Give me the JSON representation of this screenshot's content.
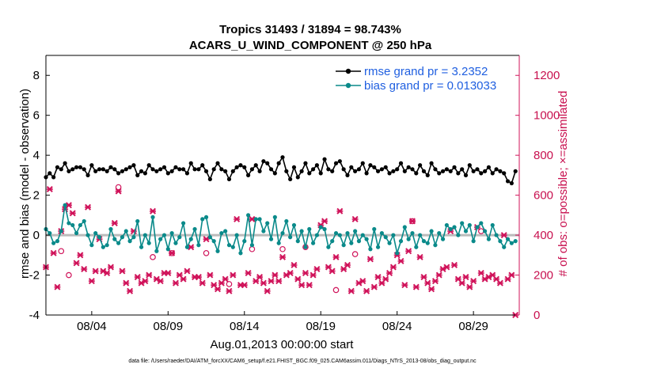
{
  "chart_data": {
    "type": "line",
    "title": "Tropics 31493 / 31894 = 98.743%",
    "subtitle": "ACARS_U_WIND_COMPONENT @ 250 hPa",
    "ylabel": "rmse and bias (model - observation)",
    "ylabel_right": "# of obs: o=possible; ×=assimilated",
    "xlabel": "Aug.01,2013 00:00:00 start",
    "footer": "data file: /Users/raeder/DAI/ATM_forcXX/CAM6_setup/f.e21.FHIST_BGC.f09_025.CAM6assim.011/Diags_NTrS_2013-08/obs_diag_output.nc",
    "ylim": [
      -4,
      9
    ],
    "ylim_right": [
      0,
      1300
    ],
    "yticks": [
      "-4",
      "-2",
      "0",
      "2",
      "4",
      "6",
      "8"
    ],
    "yticks_right": [
      "0",
      "200",
      "400",
      "600",
      "800",
      "1000",
      "1200"
    ],
    "xlim": [
      0,
      124
    ],
    "xtick_labels": [
      "08/04",
      "08/09",
      "08/14",
      "08/19",
      "08/24",
      "08/29"
    ],
    "grid": false,
    "legend_position": "top-right",
    "series": [
      {
        "name": "rmse grand pr = 3.2352",
        "color": "#000000",
        "values": [
          2.9,
          3.1,
          2.9,
          3.4,
          3.3,
          3.6,
          3.2,
          3.3,
          3.4,
          3.4,
          3.3,
          3.0,
          3.5,
          3.2,
          3.3,
          3.3,
          3.2,
          3.4,
          3.3,
          3.1,
          3.2,
          3.3,
          3.4,
          3.5,
          3.0,
          3.2,
          3.1,
          3.5,
          3.3,
          3.2,
          3.3,
          3.4,
          3.1,
          3.2,
          3.4,
          3.3,
          3.3,
          3.1,
          3.6,
          3.3,
          3.3,
          3.5,
          3.2,
          2.8,
          3.3,
          3.6,
          3.3,
          3.2,
          2.8,
          3.2,
          3.4,
          3.5,
          3.4,
          3.0,
          3.3,
          3.5,
          3.2,
          3.7,
          3.6,
          3.3,
          3.1,
          3.6,
          3.9,
          3.2,
          2.8,
          3.4,
          2.9,
          3.2,
          3.6,
          3.1,
          3.3,
          3.5,
          3.1,
          3.8,
          3.3,
          3.2,
          3.6,
          3.7,
          3.3,
          3.0,
          3.4,
          3.2,
          3.3,
          3.6,
          3.1,
          3.5,
          3.4,
          3.2,
          3.3,
          3.4,
          3.1,
          3.2,
          3.3,
          3.6,
          3.2,
          3.4,
          3.3,
          3.1,
          3.5,
          3.2,
          3.0,
          3.6,
          3.3,
          3.1,
          3.2,
          3.3,
          3.2,
          3.4,
          3.1,
          3.3,
          3.0,
          3.5,
          3.2,
          3.3,
          3.1,
          3.2,
          3.4,
          3.1,
          3.3,
          3.2,
          3.1,
          2.7,
          2.6,
          3.2
        ]
      },
      {
        "name": "bias grand pr = 0.013033",
        "color": "#0a8a8a",
        "values": [
          0.3,
          0.1,
          -0.4,
          -0.3,
          0.2,
          1.5,
          0.6,
          0.5,
          0.1,
          0.5,
          0.7,
          0.0,
          -0.5,
          0.1,
          -0.1,
          -0.6,
          -0.5,
          0.3,
          -0.2,
          -0.4,
          -0.1,
          0.2,
          -0.3,
          -0.1,
          0.7,
          -0.6,
          0.0,
          -0.4,
          0.9,
          -0.8,
          -0.2,
          0.0,
          -0.7,
          0.1,
          -0.4,
          -0.1,
          0.6,
          -0.6,
          -0.2,
          0.3,
          -0.5,
          0.8,
          0.9,
          -0.1,
          -0.3,
          -0.8,
          0.1,
          0.2,
          -0.5,
          -0.6,
          0.0,
          -0.9,
          -0.3,
          1.0,
          -0.5,
          0.8,
          0.8,
          0.2,
          0.6,
          -0.2,
          0.9,
          -0.4,
          0.1,
          0.7,
          -0.1,
          0.5,
          -0.3,
          0.2,
          -0.6,
          0.3,
          -0.4,
          0.0,
          0.4,
          0.3,
          -0.6,
          -0.3,
          0.1,
          0.0,
          -0.5,
          0.1,
          -0.4,
          0.2,
          -0.3,
          0.0,
          -0.2,
          -0.7,
          0.3,
          -0.6,
          0.1,
          -0.1,
          -0.4,
          0.0,
          -0.9,
          -0.3,
          0.4,
          -0.2,
          0.1,
          -0.6,
          0.0,
          -0.3,
          -0.4,
          0.2,
          -0.5,
          0.1,
          -0.2,
          0.5,
          0.3,
          0.4,
          0.0,
          0.6,
          0.2,
          0.5,
          -0.3,
          0.4,
          0.6,
          0.2,
          -0.2,
          0.5,
          0.0,
          -0.3,
          -0.6,
          -0.2,
          -0.4,
          -0.3
        ]
      }
    ],
    "obs_possible_markers": [
      {
        "x": 4,
        "count": 320
      },
      {
        "x": 6,
        "count": 200
      },
      {
        "x": 19,
        "count": 640
      },
      {
        "x": 28,
        "count": 290
      },
      {
        "x": 33,
        "count": 310
      },
      {
        "x": 42,
        "count": 310
      },
      {
        "x": 48,
        "count": 155
      },
      {
        "x": 54,
        "count": 330
      },
      {
        "x": 62,
        "count": 330
      },
      {
        "x": 68,
        "count": 340
      },
      {
        "x": 76,
        "count": 125
      },
      {
        "x": 81,
        "count": 305
      },
      {
        "x": 96,
        "count": 470
      },
      {
        "x": 114,
        "count": 420
      }
    ],
    "obs_assimilated_markers": [
      {
        "x": 0,
        "count": 240
      },
      {
        "x": 1,
        "count": 630
      },
      {
        "x": 2,
        "count": 310
      },
      {
        "x": 3,
        "count": 140
      },
      {
        "x": 4,
        "count": 420
      },
      {
        "x": 5,
        "count": 530
      },
      {
        "x": 6,
        "count": 550
      },
      {
        "x": 7,
        "count": 510
      },
      {
        "x": 8,
        "count": 260
      },
      {
        "x": 9,
        "count": 300
      },
      {
        "x": 10,
        "count": 230
      },
      {
        "x": 11,
        "count": 540
      },
      {
        "x": 12,
        "count": 170
      },
      {
        "x": 13,
        "count": 220
      },
      {
        "x": 14,
        "count": 380
      },
      {
        "x": 15,
        "count": 220
      },
      {
        "x": 16,
        "count": 210
      },
      {
        "x": 17,
        "count": 240
      },
      {
        "x": 18,
        "count": 460
      },
      {
        "x": 19,
        "count": 620
      },
      {
        "x": 20,
        "count": 220
      },
      {
        "x": 21,
        "count": 160
      },
      {
        "x": 22,
        "count": 120
      },
      {
        "x": 23,
        "count": 420
      },
      {
        "x": 24,
        "count": 190
      },
      {
        "x": 25,
        "count": 160
      },
      {
        "x": 26,
        "count": 170
      },
      {
        "x": 27,
        "count": 200
      },
      {
        "x": 28,
        "count": 520
      },
      {
        "x": 29,
        "count": 180
      },
      {
        "x": 30,
        "count": 170
      },
      {
        "x": 31,
        "count": 210
      },
      {
        "x": 32,
        "count": 210
      },
      {
        "x": 33,
        "count": 310
      },
      {
        "x": 34,
        "count": 160
      },
      {
        "x": 35,
        "count": 200
      },
      {
        "x": 36,
        "count": 180
      },
      {
        "x": 37,
        "count": 220
      },
      {
        "x": 38,
        "count": 340
      },
      {
        "x": 39,
        "count": 190
      },
      {
        "x": 40,
        "count": 190
      },
      {
        "x": 41,
        "count": 160
      },
      {
        "x": 42,
        "count": 380
      },
      {
        "x": 43,
        "count": 200
      },
      {
        "x": 44,
        "count": 150
      },
      {
        "x": 45,
        "count": 130
      },
      {
        "x": 46,
        "count": 160
      },
      {
        "x": 47,
        "count": 180
      },
      {
        "x": 48,
        "count": 120
      },
      {
        "x": 49,
        "count": 200
      },
      {
        "x": 50,
        "count": 480
      },
      {
        "x": 51,
        "count": 150
      },
      {
        "x": 52,
        "count": 150
      },
      {
        "x": 53,
        "count": 210
      },
      {
        "x": 54,
        "count": 480
      },
      {
        "x": 55,
        "count": 170
      },
      {
        "x": 56,
        "count": 190
      },
      {
        "x": 57,
        "count": 160
      },
      {
        "x": 58,
        "count": 120
      },
      {
        "x": 59,
        "count": 170
      },
      {
        "x": 60,
        "count": 200
      },
      {
        "x": 61,
        "count": 170
      },
      {
        "x": 62,
        "count": 290
      },
      {
        "x": 63,
        "count": 200
      },
      {
        "x": 64,
        "count": 210
      },
      {
        "x": 65,
        "count": 250
      },
      {
        "x": 66,
        "count": 180
      },
      {
        "x": 67,
        "count": 150
      },
      {
        "x": 68,
        "count": 210
      },
      {
        "x": 69,
        "count": 150
      },
      {
        "x": 70,
        "count": 200
      },
      {
        "x": 71,
        "count": 230
      },
      {
        "x": 72,
        "count": 450
      },
      {
        "x": 73,
        "count": 470
      },
      {
        "x": 74,
        "count": 240
      },
      {
        "x": 75,
        "count": 220
      },
      {
        "x": 76,
        "count": 290
      },
      {
        "x": 77,
        "count": 520
      },
      {
        "x": 78,
        "count": 230
      },
      {
        "x": 79,
        "count": 250
      },
      {
        "x": 80,
        "count": 120
      },
      {
        "x": 81,
        "count": 480
      },
      {
        "x": 82,
        "count": 160
      },
      {
        "x": 83,
        "count": 170
      },
      {
        "x": 84,
        "count": 120
      },
      {
        "x": 85,
        "count": 280
      },
      {
        "x": 86,
        "count": 140
      },
      {
        "x": 87,
        "count": 190
      },
      {
        "x": 88,
        "count": 160
      },
      {
        "x": 89,
        "count": 180
      },
      {
        "x": 90,
        "count": 210
      },
      {
        "x": 91,
        "count": 240
      },
      {
        "x": 92,
        "count": 300
      },
      {
        "x": 93,
        "count": 270
      },
      {
        "x": 94,
        "count": 150
      },
      {
        "x": 95,
        "count": 320
      },
      {
        "x": 96,
        "count": 470
      },
      {
        "x": 97,
        "count": 140
      },
      {
        "x": 98,
        "count": 290
      },
      {
        "x": 99,
        "count": 190
      },
      {
        "x": 100,
        "count": 160
      },
      {
        "x": 101,
        "count": 130
      },
      {
        "x": 102,
        "count": 170
      },
      {
        "x": 103,
        "count": 200
      },
      {
        "x": 104,
        "count": 230
      },
      {
        "x": 105,
        "count": 240
      },
      {
        "x": 106,
        "count": 420
      },
      {
        "x": 107,
        "count": 250
      },
      {
        "x": 108,
        "count": 180
      },
      {
        "x": 109,
        "count": 160
      },
      {
        "x": 110,
        "count": 190
      },
      {
        "x": 111,
        "count": 140
      },
      {
        "x": 112,
        "count": 170
      },
      {
        "x": 113,
        "count": 440
      },
      {
        "x": 114,
        "count": 210
      },
      {
        "x": 115,
        "count": 180
      },
      {
        "x": 116,
        "count": 190
      },
      {
        "x": 117,
        "count": 200
      },
      {
        "x": 118,
        "count": 180
      },
      {
        "x": 119,
        "count": 160
      },
      {
        "x": 120,
        "count": 400
      },
      {
        "x": 121,
        "count": 180
      },
      {
        "x": 122,
        "count": 200
      },
      {
        "x": 123,
        "count": 0
      }
    ]
  }
}
